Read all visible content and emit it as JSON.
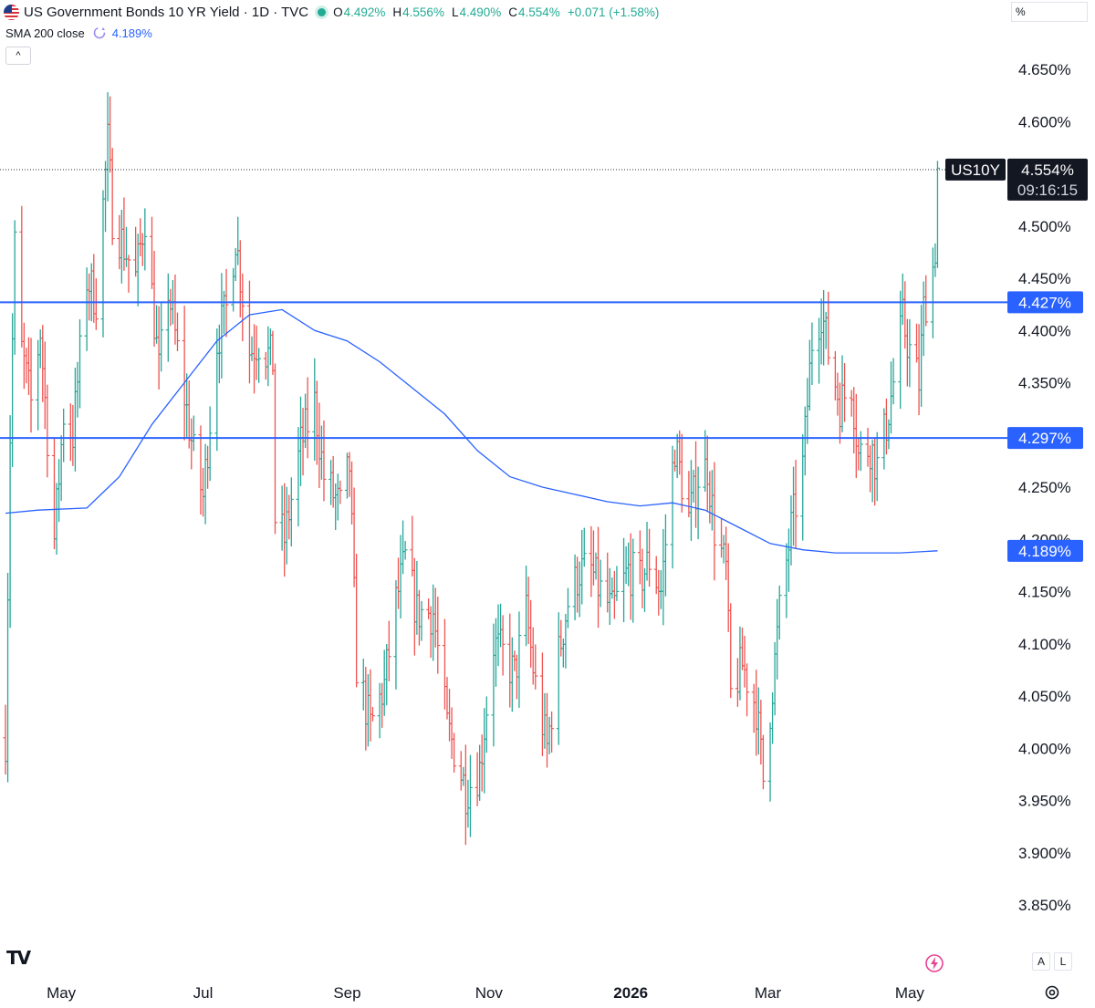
{
  "header": {
    "title": "US Government Bonds 10 YR Yield · 1D · TVC",
    "ohlc": [
      {
        "key": "O",
        "value": "4.492%"
      },
      {
        "key": "H",
        "value": "4.556%"
      },
      {
        "key": "L",
        "value": "4.490%"
      },
      {
        "key": "C",
        "value": "4.554%"
      }
    ],
    "change": "+0.071 (+1.58%)",
    "flag_icon": "us-flag-icon",
    "status_color": "#22ab94"
  },
  "indicator": {
    "label": "SMA 200 close",
    "value": "4.189%",
    "color": "#2962ff"
  },
  "scale_mode": "%",
  "collapse_symbol": "^",
  "price_badge": {
    "symbol": "US10Y",
    "price": "4.554%",
    "countdown": "09:16:15"
  },
  "horizontal_lines": [
    {
      "value": 4.427,
      "label": "4.427%",
      "color": "#2962ff"
    },
    {
      "value": 4.297,
      "label": "4.297%",
      "color": "#2962ff"
    }
  ],
  "bottom_buttons": {
    "auto": "A",
    "log": "L"
  },
  "colors": {
    "up": "#26a69a",
    "down": "#ef5350",
    "sma": "#2962ff",
    "line": "#2962ff"
  },
  "chart_data": {
    "type": "ohlc-bar",
    "y_tick_labels": [
      "4.650%",
      "4.600%",
      "4.500%",
      "4.450%",
      "4.400%",
      "4.350%",
      "4.250%",
      "4.200%",
      "4.150%",
      "4.100%",
      "4.050%",
      "4.000%",
      "3.950%",
      "3.900%",
      "3.850%"
    ],
    "ylim": [
      3.85,
      4.65
    ],
    "x_tick_labels": [
      {
        "label": "May",
        "x": "2025-05-01",
        "bold": false
      },
      {
        "label": "Jul",
        "x": "2025-07-01",
        "bold": false
      },
      {
        "label": "Sep",
        "x": "2025-09-01",
        "bold": false
      },
      {
        "label": "Nov",
        "x": "2025-11-01",
        "bold": false
      },
      {
        "label": "2026",
        "x": "2026-01-01",
        "bold": true
      },
      {
        "label": "Mar",
        "x": "2026-03-01",
        "bold": false
      },
      {
        "label": "May",
        "x": "2026-05-01",
        "bold": false
      }
    ],
    "xlim": [
      "2025-04-07",
      "2026-05-14"
    ],
    "last_price": 4.554,
    "price_keypoints": [
      [
        "2025-04-07",
        4.01
      ],
      [
        "2025-04-09",
        4.3
      ],
      [
        "2025-04-11",
        4.48
      ],
      [
        "2025-04-14",
        4.38
      ],
      [
        "2025-04-18",
        4.33
      ],
      [
        "2025-04-22",
        4.4
      ],
      [
        "2025-04-28",
        4.2
      ],
      [
        "2025-05-02",
        4.32
      ],
      [
        "2025-05-06",
        4.3
      ],
      [
        "2025-05-12",
        4.45
      ],
      [
        "2025-05-16",
        4.43
      ],
      [
        "2025-05-21",
        4.58
      ],
      [
        "2025-05-23",
        4.51
      ],
      [
        "2025-05-28",
        4.48
      ],
      [
        "2025-06-02",
        4.45
      ],
      [
        "2025-06-06",
        4.51
      ],
      [
        "2025-06-12",
        4.36
      ],
      [
        "2025-06-16",
        4.44
      ],
      [
        "2025-06-20",
        4.38
      ],
      [
        "2025-06-27",
        4.28
      ],
      [
        "2025-07-01",
        4.24
      ],
      [
        "2025-07-07",
        4.39
      ],
      [
        "2025-07-11",
        4.42
      ],
      [
        "2025-07-15",
        4.49
      ],
      [
        "2025-07-21",
        4.38
      ],
      [
        "2025-07-25",
        4.39
      ],
      [
        "2025-07-31",
        4.37
      ],
      [
        "2025-08-01",
        4.22
      ],
      [
        "2025-08-05",
        4.2
      ],
      [
        "2025-08-12",
        4.29
      ],
      [
        "2025-08-18",
        4.33
      ],
      [
        "2025-08-22",
        4.26
      ],
      [
        "2025-08-29",
        4.23
      ],
      [
        "2025-09-02",
        4.27
      ],
      [
        "2025-09-05",
        4.08
      ],
      [
        "2025-09-11",
        4.02
      ],
      [
        "2025-09-17",
        4.06
      ],
      [
        "2025-09-22",
        4.14
      ],
      [
        "2025-09-26",
        4.18
      ],
      [
        "2025-10-01",
        4.13
      ],
      [
        "2025-10-08",
        4.13
      ],
      [
        "2025-10-14",
        4.02
      ],
      [
        "2025-10-17",
        4.0
      ],
      [
        "2025-10-22",
        3.96
      ],
      [
        "2025-10-28",
        3.98
      ],
      [
        "2025-11-03",
        4.1
      ],
      [
        "2025-11-07",
        4.09
      ],
      [
        "2025-11-12",
        4.07
      ],
      [
        "2025-11-17",
        4.13
      ],
      [
        "2025-11-21",
        4.06
      ],
      [
        "2025-11-26",
        4.0
      ],
      [
        "2025-12-01",
        4.09
      ],
      [
        "2025-12-05",
        4.14
      ],
      [
        "2025-12-10",
        4.17
      ],
      [
        "2025-12-15",
        4.17
      ],
      [
        "2025-12-19",
        4.15
      ],
      [
        "2025-12-24",
        4.13
      ],
      [
        "2025-12-31",
        4.17
      ],
      [
        "2026-01-05",
        4.16
      ],
      [
        "2026-01-09",
        4.18
      ],
      [
        "2026-01-14",
        4.15
      ],
      [
        "2026-01-20",
        4.29
      ],
      [
        "2026-01-26",
        4.22
      ],
      [
        "2026-01-30",
        4.26
      ],
      [
        "2026-02-03",
        4.27
      ],
      [
        "2026-02-06",
        4.21
      ],
      [
        "2026-02-11",
        4.17
      ],
      [
        "2026-02-13",
        4.05
      ],
      [
        "2026-02-18",
        4.08
      ],
      [
        "2026-02-24",
        4.04
      ],
      [
        "2026-02-27",
        3.97
      ],
      [
        "2026-03-03",
        4.06
      ],
      [
        "2026-03-06",
        4.13
      ],
      [
        "2026-03-11",
        4.21
      ],
      [
        "2026-03-16",
        4.27
      ],
      [
        "2026-03-20",
        4.39
      ],
      [
        "2026-03-24",
        4.42
      ],
      [
        "2026-03-27",
        4.38
      ],
      [
        "2026-04-01",
        4.33
      ],
      [
        "2026-04-06",
        4.35
      ],
      [
        "2026-04-09",
        4.28
      ],
      [
        "2026-04-14",
        4.29
      ],
      [
        "2026-04-17",
        4.27
      ],
      [
        "2026-04-21",
        4.31
      ],
      [
        "2026-04-24",
        4.35
      ],
      [
        "2026-04-28",
        4.41
      ],
      [
        "2026-05-01",
        4.38
      ],
      [
        "2026-05-05",
        4.35
      ],
      [
        "2026-05-07",
        4.42
      ],
      [
        "2026-05-11",
        4.46
      ],
      [
        "2026-05-12",
        4.48
      ],
      [
        "2026-05-13",
        4.554
      ]
    ],
    "sma200": [
      [
        "2025-04-07",
        4.225
      ],
      [
        "2025-04-21",
        4.228
      ],
      [
        "2025-05-12",
        4.23
      ],
      [
        "2025-05-26",
        4.26
      ],
      [
        "2025-06-09",
        4.31
      ],
      [
        "2025-06-23",
        4.35
      ],
      [
        "2025-07-07",
        4.39
      ],
      [
        "2025-07-21",
        4.415
      ],
      [
        "2025-08-04",
        4.42
      ],
      [
        "2025-08-18",
        4.4
      ],
      [
        "2025-09-01",
        4.39
      ],
      [
        "2025-09-15",
        4.37
      ],
      [
        "2025-09-29",
        4.345
      ],
      [
        "2025-10-13",
        4.32
      ],
      [
        "2025-10-27",
        4.285
      ],
      [
        "2025-11-10",
        4.26
      ],
      [
        "2025-11-24",
        4.25
      ],
      [
        "2025-12-08",
        4.243
      ],
      [
        "2025-12-22",
        4.236
      ],
      [
        "2026-01-05",
        4.232
      ],
      [
        "2026-01-19",
        4.235
      ],
      [
        "2026-02-02",
        4.228
      ],
      [
        "2026-02-16",
        4.212
      ],
      [
        "2026-03-02",
        4.196
      ],
      [
        "2026-03-16",
        4.19
      ],
      [
        "2026-03-30",
        4.187
      ],
      [
        "2026-04-13",
        4.187
      ],
      [
        "2026-04-27",
        4.187
      ],
      [
        "2026-05-13",
        4.189
      ]
    ]
  }
}
